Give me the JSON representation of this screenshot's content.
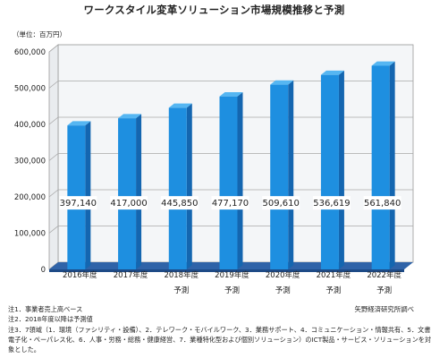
{
  "chart_data": {
    "type": "bar",
    "title": "ワークスタイル変革ソリューション市場規模推移と予測",
    "unit": "（単位：百万円）",
    "categories": [
      [
        "2016年度"
      ],
      [
        "2017年度"
      ],
      [
        "2018年度",
        "予測"
      ],
      [
        "2019年度",
        "予測"
      ],
      [
        "2020年度",
        "予測"
      ],
      [
        "2021年度",
        "予測"
      ],
      [
        "2022年度",
        "予測"
      ]
    ],
    "values": [
      397140,
      417000,
      445850,
      477170,
      509610,
      536619,
      561840
    ],
    "value_labels": [
      "397,140",
      "417,000",
      "445,850",
      "477,170",
      "509,610",
      "536,619",
      "561,840"
    ],
    "y_ticks": [
      0,
      100000,
      200000,
      300000,
      400000,
      500000,
      600000
    ],
    "y_tick_labels": [
      "0",
      "100,000",
      "200,000",
      "300,000",
      "400,000",
      "500,000",
      "600,000"
    ],
    "ylim": [
      0,
      600000
    ],
    "grid": true,
    "colors": {
      "bar_front": "#1e8fe0",
      "bar_side": "#1466b0",
      "bar_top": "#55b6f2",
      "floor": "#2f63a8",
      "wall": "#f4f6f8"
    }
  },
  "notes": [
    "注1．事業者売上高ベース",
    "注2．2018年度以降は予測値",
    "注3．7領域（1．環境（ファシリティ・設備）、2．テレワーク・モバイルワーク、3．業務サポート、4．コミュニケーション・情報共有、5．文書",
    "電子化・ペーパレス化、6．人事・労務・総務・健康経営、7．業種特化型および個別ソリューション）のICT製品・サービス・ソリューションを対",
    "象とした。"
  ],
  "source": "矢野経済研究所調べ"
}
